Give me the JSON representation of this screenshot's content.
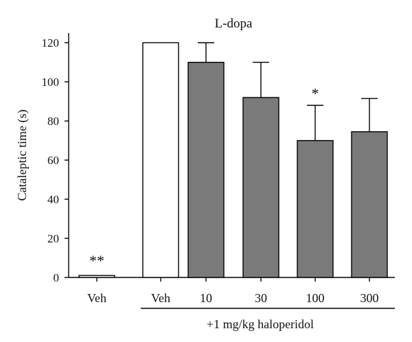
{
  "chart_data": {
    "type": "bar",
    "title": "L-dopa",
    "ylabel": "Cataleptic time (s)",
    "xlabel": "",
    "ylim": [
      0,
      125
    ],
    "yticks": [
      0,
      20,
      40,
      60,
      80,
      100,
      120
    ],
    "categories": [
      "Veh",
      "Veh",
      "10",
      "30",
      "100",
      "300"
    ],
    "values": [
      1,
      120,
      110,
      92,
      70,
      74.5
    ],
    "errors": [
      0,
      0,
      10,
      18,
      18,
      17
    ],
    "annotations": [
      "**",
      "",
      "",
      "",
      "*",
      ""
    ],
    "bar_fills": [
      "#ffffff",
      "#ffffff",
      "#7a7a7a",
      "#7a7a7a",
      "#7a7a7a",
      "#7a7a7a"
    ],
    "group_label": "+1 mg/kg haloperidol",
    "grid": false,
    "legend": "none"
  }
}
